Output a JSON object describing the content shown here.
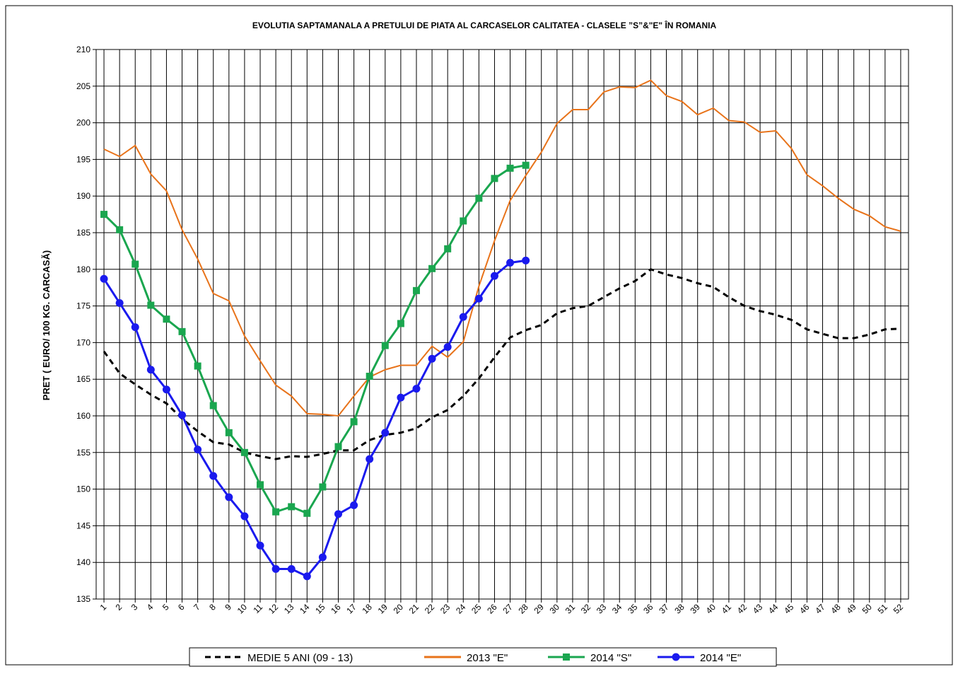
{
  "chart_data": {
    "type": "line",
    "title": "EVOLUTIA SAPTAMANALA  A PRETULUI  DE PIATA   AL CARCASELOR  CALITATEA  - CLASELE ”S”&\"E\"  ÎN ROMANIA",
    "y_label": "PRET ( EURO/ 100 KG. CARCASĂ)",
    "categories": [
      "1",
      "2",
      "3",
      "4",
      "5",
      "6",
      "7",
      "8",
      "9",
      "10",
      "11",
      "12",
      "13",
      "14",
      "15",
      "16",
      "17",
      "18",
      "19",
      "20",
      "21",
      "22",
      "23",
      "24",
      "25",
      "26",
      "27",
      "28",
      "29",
      "30",
      "31",
      "32",
      "33",
      "34",
      "35",
      "36",
      "37",
      "38",
      "39",
      "40",
      "41",
      "42",
      "43",
      "44",
      "45",
      "46",
      "47",
      "48",
      "49",
      "50",
      "51",
      "52"
    ],
    "ylim": [
      135,
      210
    ],
    "yticks": [
      135,
      140,
      145,
      150,
      155,
      160,
      165,
      170,
      175,
      180,
      185,
      190,
      195,
      200,
      205,
      210
    ],
    "grid": true,
    "legend": "bottom",
    "series": [
      {
        "name": "MEDIE 5 ANI (09 - 13)",
        "color": "#000000",
        "dash": true,
        "marker": "none",
        "values": [
          168.8,
          165.8,
          164.3,
          162.9,
          161.7,
          159.6,
          157.9,
          156.4,
          156.1,
          155.0,
          154.5,
          154.1,
          154.5,
          154.4,
          154.8,
          155.3,
          155.3,
          156.7,
          157.4,
          157.7,
          158.3,
          159.8,
          160.8,
          162.7,
          165.1,
          168.0,
          170.7,
          171.7,
          172.4,
          174.0,
          174.7,
          175.0,
          176.2,
          177.4,
          178.4,
          180.0,
          179.3,
          178.8,
          178.1,
          177.6,
          176.2,
          175.0,
          174.3,
          173.8,
          173.1,
          171.8,
          171.2,
          170.6,
          170.6,
          171.1,
          171.8,
          171.9
        ]
      },
      {
        "name": "2013 \"E\"",
        "color": "#e8731a",
        "dash": false,
        "marker": "none",
        "values": [
          196.4,
          195.4,
          196.9,
          193.0,
          190.7,
          185.4,
          181.4,
          176.7,
          175.7,
          170.9,
          167.5,
          164.2,
          162.7,
          160.3,
          160.2,
          160.0,
          162.7,
          165.3,
          166.3,
          166.9,
          166.9,
          169.5,
          168.0,
          170.1,
          177.7,
          183.9,
          189.4,
          192.8,
          196.0,
          199.9,
          201.8,
          201.8,
          204.2,
          204.9,
          204.8,
          205.8,
          203.7,
          202.9,
          201.1,
          202.0,
          200.3,
          200.1,
          198.7,
          198.9,
          196.5,
          192.9,
          191.4,
          189.7,
          188.2,
          187.3,
          185.8,
          185.2
        ]
      },
      {
        "name": "2014 \"S\"",
        "color": "#1aa64f",
        "dash": false,
        "marker": "square",
        "values": [
          187.5,
          185.4,
          180.7,
          175.1,
          173.2,
          171.5,
          166.8,
          161.4,
          157.7,
          155.0,
          150.6,
          146.9,
          147.6,
          146.7,
          150.3,
          155.8,
          159.2,
          165.4,
          169.6,
          172.6,
          177.1,
          180.1,
          182.8,
          186.6,
          189.7,
          192.4,
          193.8,
          194.2,
          null,
          null,
          null,
          null,
          null,
          null,
          null,
          null,
          null,
          null,
          null,
          null,
          null,
          null,
          null,
          null,
          null,
          null,
          null,
          null,
          null,
          null,
          null,
          null
        ]
      },
      {
        "name": "2014 \"E\"",
        "color": "#1a1aee",
        "dash": false,
        "marker": "circle",
        "values": [
          178.7,
          175.4,
          172.1,
          166.3,
          163.6,
          160.1,
          155.4,
          151.8,
          148.9,
          146.3,
          142.3,
          139.1,
          139.1,
          138.1,
          140.7,
          146.6,
          147.8,
          154.1,
          157.7,
          162.5,
          163.7,
          167.8,
          169.4,
          173.5,
          176.0,
          179.1,
          180.9,
          181.2,
          null,
          null,
          null,
          null,
          null,
          null,
          null,
          null,
          null,
          null,
          null,
          null,
          null,
          null,
          null,
          null,
          null,
          null,
          null,
          null,
          null,
          null,
          null,
          null
        ]
      }
    ]
  }
}
